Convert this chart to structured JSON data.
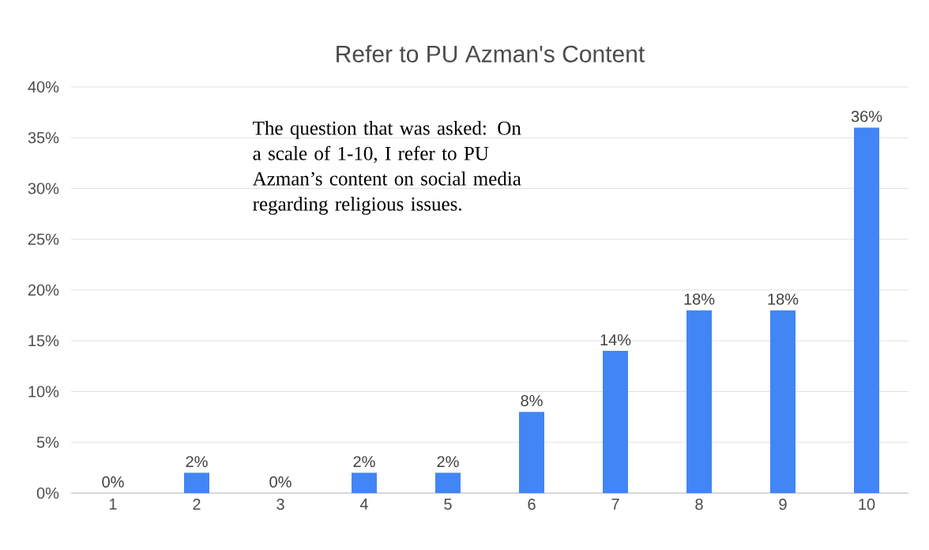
{
  "chart_data": {
    "type": "bar",
    "title": "Refer to PU Azman's Content",
    "categories": [
      "1",
      "2",
      "3",
      "4",
      "5",
      "6",
      "7",
      "8",
      "9",
      "10"
    ],
    "values": [
      0,
      2,
      0,
      2,
      2,
      8,
      14,
      18,
      18,
      36
    ],
    "value_labels": [
      "0%",
      "2%",
      "0%",
      "2%",
      "2%",
      "8%",
      "14%",
      "18%",
      "18%",
      "36%"
    ],
    "color": "#4285f4",
    "ylim": [
      0,
      40
    ],
    "yticks": [
      {
        "value": 0,
        "label": "0%"
      },
      {
        "value": 5,
        "label": "5%"
      },
      {
        "value": 10,
        "label": "10%"
      },
      {
        "value": 15,
        "label": "15%"
      },
      {
        "value": 20,
        "label": "20%"
      },
      {
        "value": 25,
        "label": "25%"
      },
      {
        "value": 30,
        "label": "30%"
      },
      {
        "value": 35,
        "label": "35%"
      },
      {
        "value": 40,
        "label": "40%"
      }
    ],
    "grid": "y",
    "annotations": [
      "The question that was asked: On a scale of 1-10, I refer to PU Azman’s content on social media regarding religious issues."
    ]
  }
}
